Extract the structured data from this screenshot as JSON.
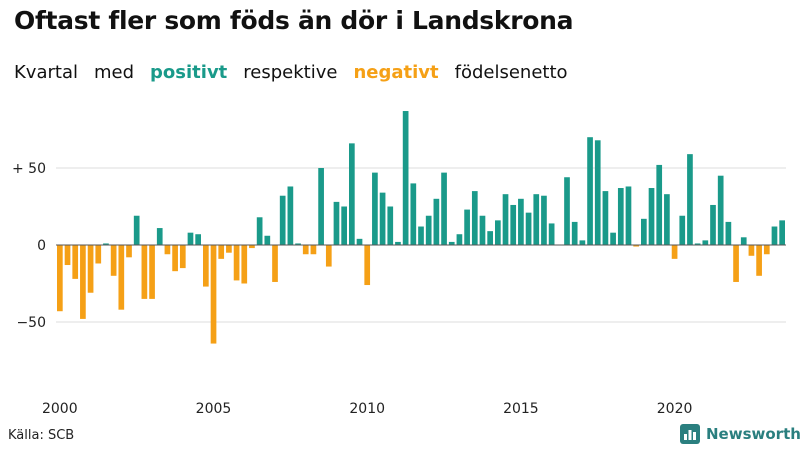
{
  "title": "Oftast fler som föds än dör i Landskrona",
  "subtitle": {
    "prefix1": "Kvartal",
    "prefix2": "med",
    "positive": "positivt",
    "middle": "respektive",
    "negative": "negativt",
    "suffix": "födelsenetto"
  },
  "colors": {
    "positive": "#1a9a8a",
    "negative": "#f5a016",
    "grid": "#dddddd",
    "axis": "#555555"
  },
  "source": "Källa: SCB",
  "brand": "Newsworthy",
  "chart_data": {
    "type": "bar",
    "title": "Oftast fler som föds än dör i Landskrona",
    "ylabel": "",
    "xlabel": "",
    "ylim": [
      -90,
      90
    ],
    "y_ticks": [
      {
        "value": 50,
        "label": "+ 50"
      },
      {
        "value": 0,
        "label": "0"
      },
      {
        "value": -50,
        "label": "−50"
      }
    ],
    "x_ticks": [
      {
        "year": 2000,
        "label": "2000"
      },
      {
        "year": 2005,
        "label": "2005"
      },
      {
        "year": 2010,
        "label": "2010"
      },
      {
        "year": 2015,
        "label": "2015"
      },
      {
        "year": 2020,
        "label": "2020"
      }
    ],
    "start_year": 2000,
    "quarters_per_year": 4,
    "values": [
      -43,
      -13,
      -22,
      -48,
      -31,
      -12,
      1,
      -20,
      -42,
      -8,
      19,
      -35,
      -35,
      11,
      -6,
      -17,
      -15,
      8,
      7,
      -27,
      -64,
      -9,
      -5,
      -23,
      -25,
      -2,
      18,
      6,
      -24,
      32,
      38,
      1,
      -6,
      -6,
      50,
      -14,
      28,
      25,
      66,
      4,
      -26,
      47,
      34,
      25,
      2,
      87,
      40,
      12,
      19,
      30,
      47,
      2,
      7,
      23,
      35,
      19,
      9,
      16,
      33,
      26,
      30,
      21,
      33,
      32,
      14,
      0,
      44,
      15,
      3,
      70,
      68,
      35,
      8,
      37,
      38,
      -1,
      17,
      37,
      52,
      33,
      -9,
      19,
      59,
      1,
      3,
      26,
      45,
      15,
      -24,
      5,
      -7,
      -20,
      -6,
      12,
      16
    ]
  }
}
